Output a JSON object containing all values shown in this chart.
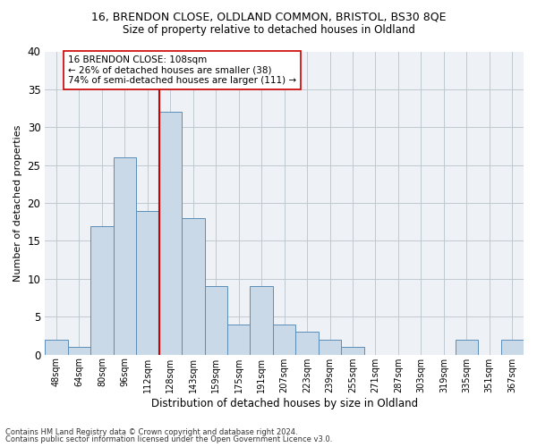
{
  "title_line1": "16, BRENDON CLOSE, OLDLAND COMMON, BRISTOL, BS30 8QE",
  "title_line2": "Size of property relative to detached houses in Oldland",
  "xlabel": "Distribution of detached houses by size in Oldland",
  "ylabel": "Number of detached properties",
  "footer_line1": "Contains HM Land Registry data © Crown copyright and database right 2024.",
  "footer_line2": "Contains public sector information licensed under the Open Government Licence v3.0.",
  "bar_labels": [
    "48sqm",
    "64sqm",
    "80sqm",
    "96sqm",
    "112sqm",
    "128sqm",
    "143sqm",
    "159sqm",
    "175sqm",
    "191sqm",
    "207sqm",
    "223sqm",
    "239sqm",
    "255sqm",
    "271sqm",
    "287sqm",
    "303sqm",
    "319sqm",
    "335sqm",
    "351sqm",
    "367sqm"
  ],
  "bar_values": [
    2,
    1,
    17,
    26,
    19,
    32,
    18,
    9,
    4,
    9,
    4,
    3,
    2,
    1,
    0,
    0,
    0,
    0,
    2,
    0,
    2
  ],
  "bar_color": "#c9d9e8",
  "bar_edge_color": "#5b8db8",
  "grid_color": "#c0c8d0",
  "bg_color": "#eef2f7",
  "reference_line_x": 4.5,
  "reference_line_color": "#cc0000",
  "annotation_text": "16 BRENDON CLOSE: 108sqm\n← 26% of detached houses are smaller (38)\n74% of semi-detached houses are larger (111) →",
  "annotation_box_color": "#ffffff",
  "annotation_box_edge": "#cc0000",
  "ylim": [
    0,
    40
  ],
  "yticks": [
    0,
    5,
    10,
    15,
    20,
    25,
    30,
    35,
    40
  ],
  "title1_fontsize": 9,
  "title2_fontsize": 8.5
}
